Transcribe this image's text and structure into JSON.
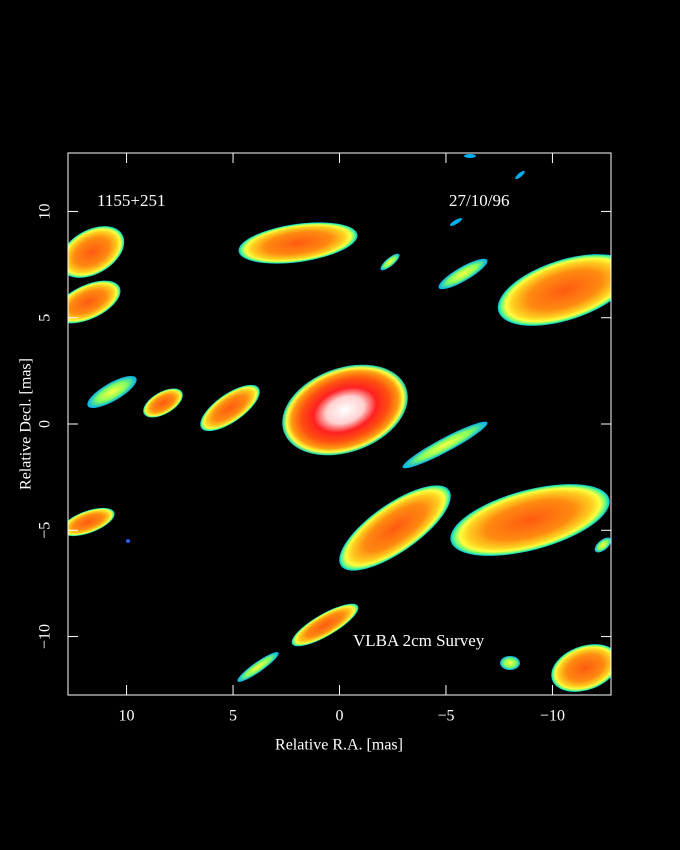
{
  "chart_data": {
    "type": "image",
    "title": "VLBA 2cm Survey",
    "annotations": [
      "1155+251",
      "27/10/96"
    ],
    "xlabel": "Relative R.A. [mas]",
    "ylabel": "Relative Decl. [mas]",
    "xlim": [
      12.75,
      -12.75
    ],
    "ylim": [
      -12.75,
      12.75
    ],
    "xticks": [
      10,
      5,
      0,
      {
        "value": -5,
        "label": "−5"
      },
      {
        "value": -10,
        "label": "−10"
      }
    ],
    "yticks": [
      {
        "value": -10,
        "label": "−10"
      },
      {
        "value": -5,
        "label": "−5"
      },
      0,
      5,
      10
    ]
  }
}
